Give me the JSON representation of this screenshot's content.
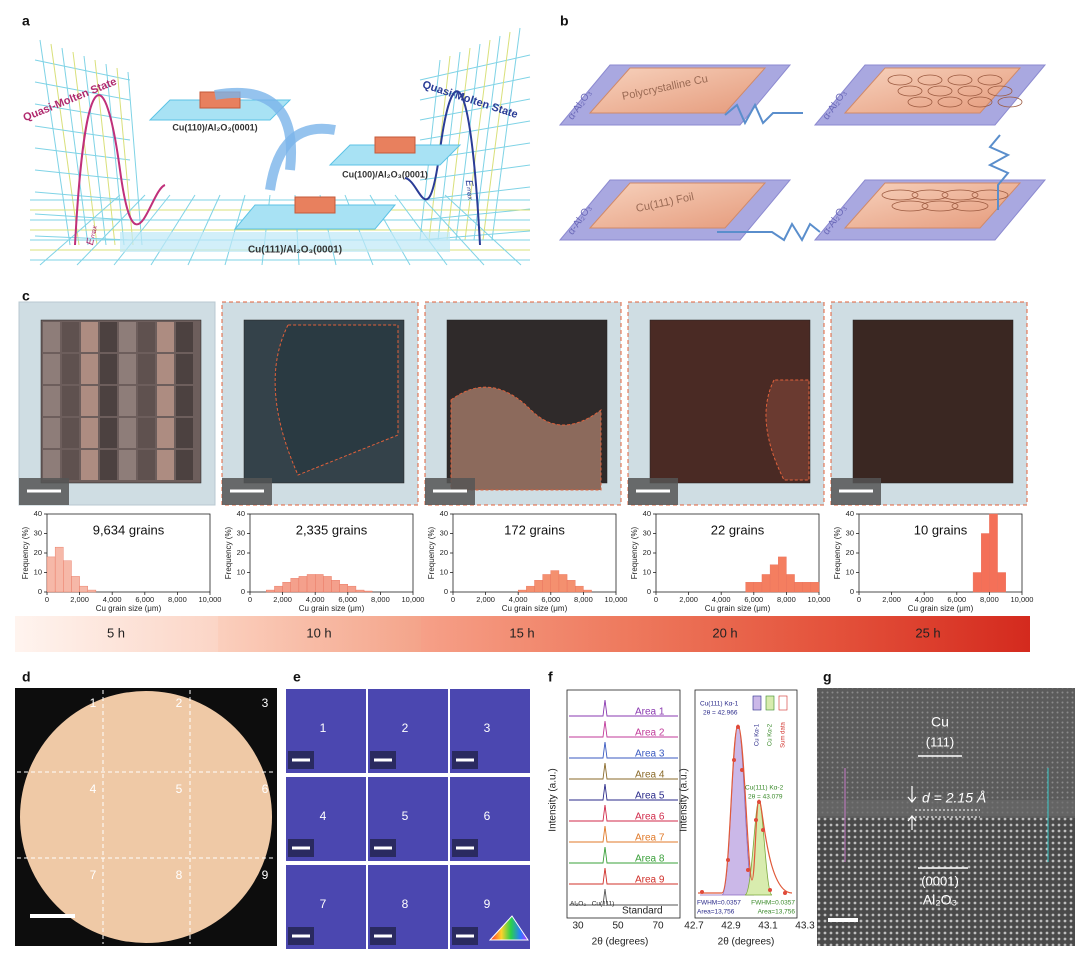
{
  "panel_letters": [
    "a",
    "b",
    "c",
    "d",
    "e",
    "f",
    "g"
  ],
  "panel_a": {
    "state_left": "Quasi-Molten State",
    "state_right": "Quasi-Molten State",
    "cu110": "Cu(110)/Al₂O₃(0001)",
    "cu100": "Cu(100)/Al₂O₃(0001)",
    "cu111": "Cu(111)/Al₂O₃(0001)",
    "barrier_left": "Eₘₐₓ",
    "barrier_right": "Eₘₐₓ"
  },
  "panel_b": {
    "polycrystalline": "Polycrystalline Cu",
    "foil": "Cu(111) Foil",
    "substrates": [
      "α-Al₂O₃",
      "α-Al₂O₃",
      "α-Al₂O₃",
      "α-Al₂O₃"
    ]
  },
  "chart_data": [
    {
      "type": "histogram",
      "title": "9,634 grains",
      "x_label": "Cu grain size (μm)",
      "y_label": "Frequency (%)",
      "color": "#f6b8a8",
      "bins": [
        0,
        500,
        1000,
        1500,
        2000,
        2500,
        3000,
        3500,
        4000,
        4500,
        5000,
        5500,
        6000,
        6500,
        7000,
        7500,
        8000,
        8500,
        9000,
        9500,
        10000
      ],
      "values": [
        18,
        23,
        16,
        8,
        3,
        1,
        0,
        0,
        0,
        0,
        0,
        0,
        0,
        0,
        0,
        0,
        0,
        0,
        0,
        0
      ],
      "xlim": [
        0,
        10000
      ],
      "ylim": [
        0,
        40
      ],
      "xticks": [
        0,
        {
          "value": 2000,
          "label": "2,000"
        },
        {
          "value": 4000,
          "label": "4,000"
        },
        {
          "value": 6000,
          "label": "6,000"
        },
        {
          "value": 8000,
          "label": "8,000"
        },
        {
          "value": 10000,
          "label": "10,000"
        }
      ],
      "yticks": [
        0,
        10,
        20,
        30,
        40
      ]
    },
    {
      "type": "histogram",
      "title": "2,335 grains",
      "x_label": "Cu grain size (μm)",
      "y_label": "Frequency (%)",
      "color": "#f4a08c",
      "bins": [
        0,
        500,
        1000,
        1500,
        2000,
        2500,
        3000,
        3500,
        4000,
        4500,
        5000,
        5500,
        6000,
        6500,
        7000,
        7500,
        8000,
        8500,
        9000,
        9500,
        10000
      ],
      "values": [
        0,
        0,
        1,
        3,
        5,
        7,
        8,
        9,
        9,
        8,
        6,
        4,
        3,
        1,
        0.5,
        0,
        0,
        0,
        0,
        0
      ],
      "xlim": [
        0,
        10000
      ],
      "ylim": [
        0,
        40
      ],
      "xticks": [
        0,
        {
          "value": 2000,
          "label": "2,000"
        },
        {
          "value": 4000,
          "label": "4,000"
        },
        {
          "value": 6000,
          "label": "6,000"
        },
        {
          "value": 8000,
          "label": "8,000"
        },
        {
          "value": 10000,
          "label": "10,000"
        }
      ],
      "yticks": [
        0,
        10,
        20,
        30,
        40
      ]
    },
    {
      "type": "histogram",
      "title": "172 grains",
      "x_label": "Cu grain size (μm)",
      "y_label": "Frequency (%)",
      "color": "#f4906f",
      "bins": [
        0,
        500,
        1000,
        1500,
        2000,
        2500,
        3000,
        3500,
        4000,
        4500,
        5000,
        5500,
        6000,
        6500,
        7000,
        7500,
        8000,
        8500,
        9000,
        9500,
        10000
      ],
      "values": [
        0,
        0,
        0,
        0,
        0,
        0,
        0,
        0,
        1,
        3,
        6,
        9,
        11,
        9,
        6,
        3,
        1,
        0,
        0,
        0
      ],
      "xlim": [
        0,
        10000
      ],
      "ylim": [
        0,
        40
      ],
      "xticks": [
        0,
        {
          "value": 2000,
          "label": "2,000"
        },
        {
          "value": 4000,
          "label": "4,000"
        },
        {
          "value": 6000,
          "label": "6,000"
        },
        {
          "value": 8000,
          "label": "8,000"
        },
        {
          "value": 10000,
          "label": "10,000"
        }
      ],
      "yticks": [
        0,
        10,
        20,
        30,
        40
      ]
    },
    {
      "type": "histogram",
      "title": "22 grains",
      "x_label": "Cu grain size (μm)",
      "y_label": "Frequency (%)",
      "color": "#f47e60",
      "bins": [
        0,
        500,
        1000,
        1500,
        2000,
        2500,
        3000,
        3500,
        4000,
        4500,
        5000,
        5500,
        6000,
        6500,
        7000,
        7500,
        8000,
        8500,
        9000,
        9500,
        10000
      ],
      "values": [
        0,
        0,
        0,
        0,
        0,
        0,
        0,
        0,
        0,
        0,
        0,
        5,
        5,
        9,
        14,
        18,
        9,
        5,
        5,
        5
      ],
      "xlim": [
        0,
        10000
      ],
      "ylim": [
        0,
        40
      ],
      "xticks": [
        0,
        {
          "value": 2000,
          "label": "2,000"
        },
        {
          "value": 4000,
          "label": "4,000"
        },
        {
          "value": 6000,
          "label": "6,000"
        },
        {
          "value": 8000,
          "label": "8,000"
        },
        {
          "value": 10000,
          "label": "10,000"
        }
      ],
      "yticks": [
        0,
        10,
        20,
        30,
        40
      ]
    },
    {
      "type": "histogram",
      "title": "10 grains",
      "x_label": "Cu grain size (μm)",
      "y_label": "Frequency (%)",
      "color": "#f47058",
      "bins": [
        0,
        500,
        1000,
        1500,
        2000,
        2500,
        3000,
        3500,
        4000,
        4500,
        5000,
        5500,
        6000,
        6500,
        7000,
        7500,
        8000,
        8500,
        9000,
        9500,
        10000
      ],
      "values": [
        0,
        0,
        0,
        0,
        0,
        0,
        0,
        0,
        0,
        0,
        0,
        0,
        0,
        0,
        10,
        30,
        40,
        10,
        0,
        0
      ],
      "xlim": [
        0,
        10000
      ],
      "ylim": [
        0,
        40
      ],
      "xticks": [
        0,
        {
          "value": 2000,
          "label": "2,000"
        },
        {
          "value": 4000,
          "label": "4,000"
        },
        {
          "value": 6000,
          "label": "6,000"
        },
        {
          "value": 8000,
          "label": "8,000"
        },
        {
          "value": 10000,
          "label": "10,000"
        }
      ],
      "yticks": [
        0,
        10,
        20,
        30,
        40
      ]
    }
  ],
  "panel_c": {
    "durations": [
      "5 h",
      "10 h",
      "15 h",
      "20 h",
      "25 h"
    ]
  },
  "panel_d": {
    "areas": [
      "1",
      "2",
      "3",
      "4",
      "5",
      "6",
      "7",
      "8",
      "9"
    ]
  },
  "panel_e": {
    "areas": [
      "1",
      "2",
      "3",
      "4",
      "5",
      "6",
      "7",
      "8",
      "9"
    ]
  },
  "panel_f": {
    "areas": [
      "Area 1",
      "Area 2",
      "Area 3",
      "Area 4",
      "Area 5",
      "Area 6",
      "Area 7",
      "Area 8",
      "Area 9"
    ],
    "standard": "Standard",
    "substrate_peak": "Al₂O₃",
    "cu_peak": "Cu(111)",
    "left": {
      "y_label": "Intensity (a.u.)",
      "x_label": "2θ (degrees)",
      "xticks": [
        "30",
        "50",
        "70"
      ]
    },
    "right": {
      "y_label": "Intensity (a.u.)",
      "x_label": "2θ (degrees)",
      "xticks": [
        "42.7",
        "42.9",
        "43.1",
        "43.3"
      ]
    },
    "peak1": "Cu(111) Kα-1",
    "peak1_pos": "2θ = 42.966",
    "peak2": "Cu(111) Kα-2",
    "peak2_pos": "2θ = 43.079",
    "fwhm1": "FWHM=0.0357",
    "area1": "Area=13,756",
    "fwhm2": "FWHM=0.0357",
    "area2": "Area=13,756",
    "legend": [
      "Cu Kα-1",
      "Cu Kα-2",
      "Sum data"
    ]
  },
  "panel_g": {
    "top_label": "Cu",
    "top_plane": "(111)",
    "spacing": "d = 2.15 Å",
    "bottom_plane": "(0001)",
    "bottom_label": "Al₂O₃"
  }
}
